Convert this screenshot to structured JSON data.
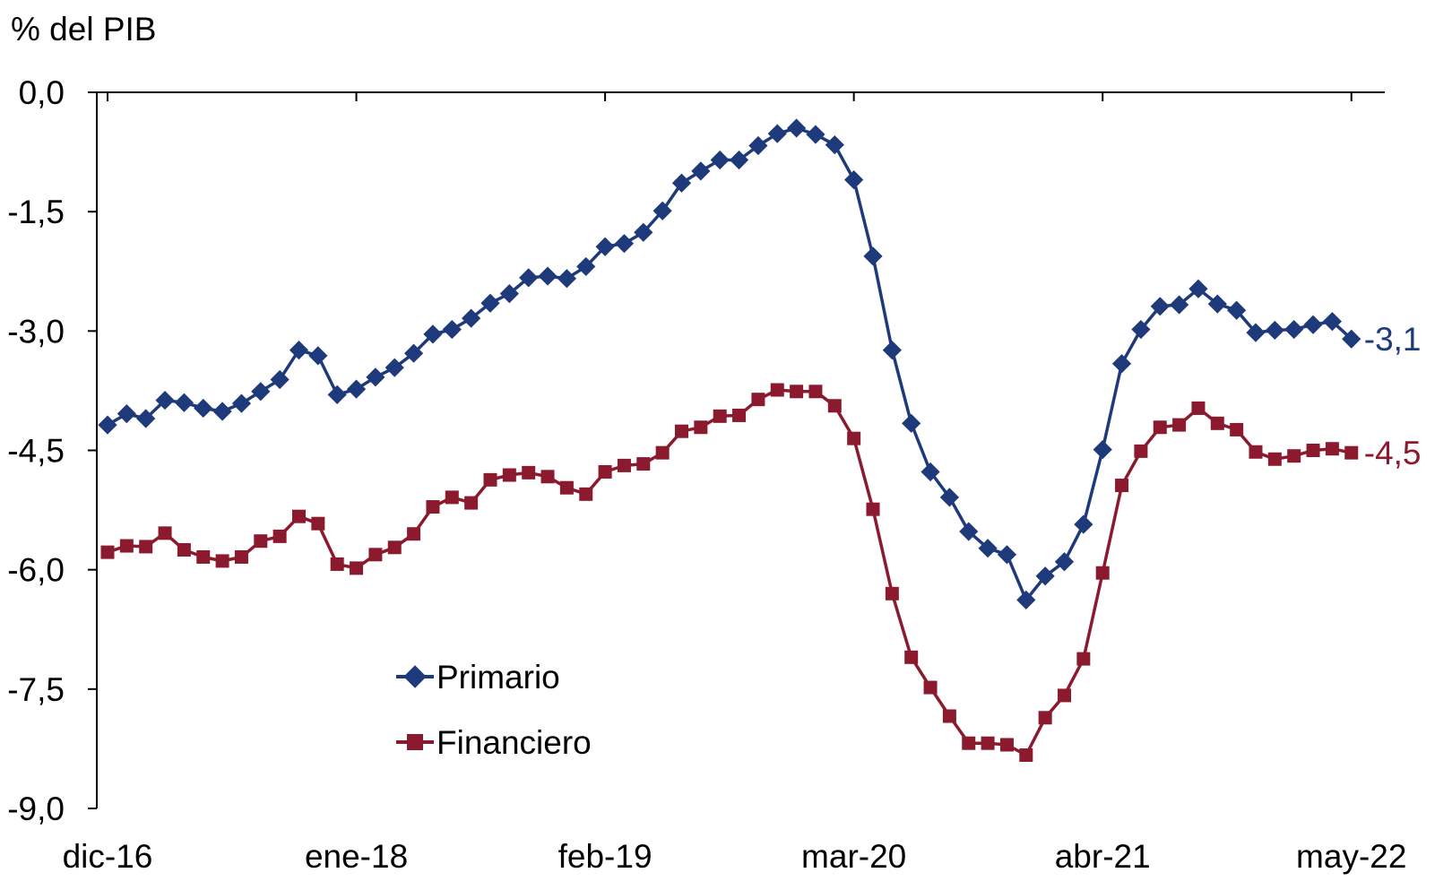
{
  "chart_data": {
    "type": "line",
    "ylabel": "% del PIB",
    "ylim": [
      -9.0,
      0.0
    ],
    "yticks": [
      0.0,
      -1.5,
      -3.0,
      -4.5,
      -6.0,
      -7.5,
      -9.0
    ],
    "ytick_labels": [
      "0,0",
      "-1,5",
      "-3,0",
      "-4,5",
      "-6,0",
      "-7,5",
      "-9,0"
    ],
    "x_start": "dic-16",
    "x_end": "may-22",
    "xtick_labels": [
      "dic-16",
      "ene-18",
      "feb-19",
      "mar-20",
      "abr-21",
      "may-22"
    ],
    "xtick_index": [
      0,
      13,
      26,
      39,
      52,
      65
    ],
    "grid": false,
    "legend_position": "bottom-left",
    "series": [
      {
        "name": "Primario",
        "color": "#1f3a7a",
        "marker": "diamond",
        "end_label": "-3,1",
        "values": [
          -4.18,
          -4.04,
          -4.1,
          -3.87,
          -3.9,
          -3.97,
          -4.01,
          -3.91,
          -3.76,
          -3.61,
          -3.24,
          -3.31,
          -3.8,
          -3.73,
          -3.58,
          -3.46,
          -3.28,
          -3.04,
          -2.98,
          -2.84,
          -2.65,
          -2.53,
          -2.33,
          -2.31,
          -2.34,
          -2.19,
          -1.94,
          -1.9,
          -1.76,
          -1.49,
          -1.14,
          -0.99,
          -0.85,
          -0.85,
          -0.67,
          -0.52,
          -0.45,
          -0.53,
          -0.66,
          -1.1,
          -2.06,
          -3.24,
          -4.16,
          -4.77,
          -5.09,
          -5.52,
          -5.73,
          -5.81,
          -6.38,
          -6.08,
          -5.9,
          -5.43,
          -4.49,
          -3.41,
          -2.98,
          -2.69,
          -2.67,
          -2.47,
          -2.66,
          -2.74,
          -3.02,
          -2.99,
          -2.98,
          -2.92,
          -2.88,
          -3.1
        ]
      },
      {
        "name": "Financiero",
        "color": "#8b1a2e",
        "marker": "square",
        "end_label": "-4,5",
        "values": [
          -5.78,
          -5.7,
          -5.71,
          -5.54,
          -5.75,
          -5.84,
          -5.89,
          -5.84,
          -5.64,
          -5.58,
          -5.33,
          -5.42,
          -5.93,
          -5.98,
          -5.81,
          -5.72,
          -5.55,
          -5.21,
          -5.09,
          -5.16,
          -4.87,
          -4.81,
          -4.78,
          -4.83,
          -4.97,
          -5.05,
          -4.77,
          -4.69,
          -4.67,
          -4.53,
          -4.26,
          -4.21,
          -4.07,
          -4.06,
          -3.86,
          -3.74,
          -3.76,
          -3.76,
          -3.94,
          -4.35,
          -5.24,
          -6.3,
          -7.1,
          -7.48,
          -7.84,
          -8.18,
          -8.18,
          -8.2,
          -8.33,
          -7.86,
          -7.58,
          -7.12,
          -6.04,
          -4.94,
          -4.51,
          -4.21,
          -4.18,
          -3.97,
          -4.16,
          -4.24,
          -4.52,
          -4.61,
          -4.57,
          -4.5,
          -4.48,
          -4.53
        ]
      }
    ]
  }
}
